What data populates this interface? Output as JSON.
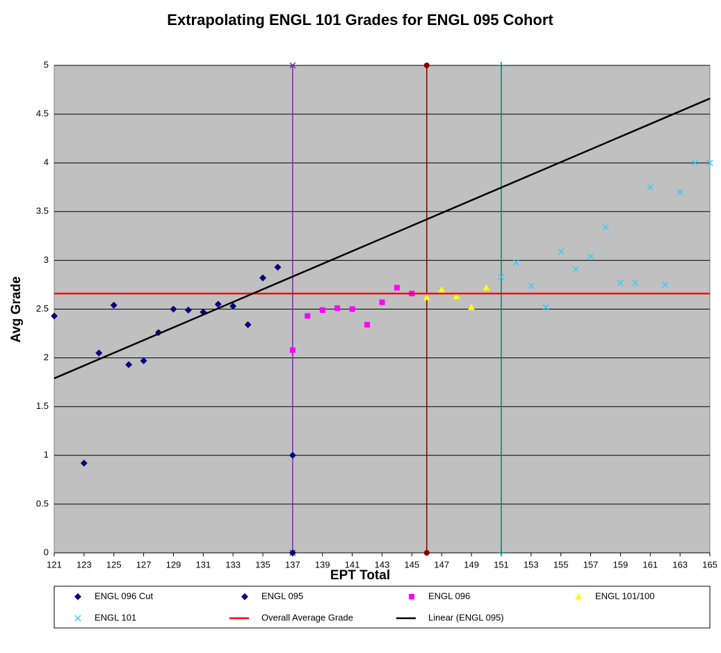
{
  "chart_data": {
    "type": "scatter",
    "title": "Extrapolating ENGL 101 Grades for ENGL 095 Cohort",
    "x_label": "EPT Total",
    "y_label": "Avg Grade",
    "xlim": [
      121,
      165
    ],
    "ylim": [
      0,
      5
    ],
    "xticks": [
      121,
      123,
      125,
      127,
      129,
      131,
      133,
      135,
      137,
      139,
      141,
      143,
      145,
      147,
      149,
      151,
      153,
      155,
      157,
      159,
      161,
      163,
      165
    ],
    "yticks": [
      0,
      0.5,
      1,
      1.5,
      2,
      2.5,
      3,
      3.5,
      4,
      4.5,
      5
    ],
    "grid": true,
    "background": "#c0c0c0",
    "series": [
      {
        "name": "ENGL 096 Cut",
        "color": "#000080",
        "marker": "diamond",
        "x": [
          137,
          137
        ],
        "values": [
          1,
          0
        ]
      },
      {
        "name": "ENGL 095",
        "color": "#000080",
        "marker": "diamond",
        "x": [
          121,
          123,
          124,
          125,
          126,
          127,
          128,
          129,
          130,
          131,
          132,
          133,
          134,
          135,
          136
        ],
        "values": [
          2.43,
          0.92,
          2.05,
          2.54,
          1.93,
          1.97,
          2.26,
          2.5,
          2.49,
          2.47,
          2.55,
          2.53,
          2.34,
          2.82,
          2.93
        ]
      },
      {
        "name": "ENGL 096",
        "color": "#ff00ff",
        "marker": "square",
        "x": [
          137,
          138,
          139,
          140,
          141,
          142,
          143,
          144,
          145
        ],
        "values": [
          2.08,
          2.43,
          2.49,
          2.51,
          2.5,
          2.34,
          2.57,
          2.72,
          2.66
        ]
      },
      {
        "name": "ENGL 101/100",
        "color": "#ffff00",
        "marker": "triangle",
        "x": [
          146,
          147,
          148,
          149,
          150
        ],
        "values": [
          2.62,
          2.7,
          2.63,
          2.52,
          2.72
        ]
      },
      {
        "name": "ENGL 101",
        "color": "#33ccff",
        "marker": "x",
        "x": [
          151,
          152,
          153,
          154,
          155,
          156,
          157,
          158,
          159,
          160,
          161,
          162,
          163,
          164,
          165
        ],
        "values": [
          2.83,
          2.98,
          2.74,
          2.52,
          3.09,
          2.91,
          3.04,
          3.34,
          2.77,
          2.77,
          3.75,
          2.75,
          3.7,
          4.0,
          4.0
        ]
      },
      {
        "name": "Overall Average Grade",
        "color": "#ff0000",
        "marker": "line",
        "x": [
          121,
          165
        ],
        "values": [
          2.66,
          2.66
        ]
      },
      {
        "name": "Linear (ENGL 095)",
        "color": "#000000",
        "marker": "line",
        "x": [
          121,
          165
        ],
        "values": [
          1.79,
          4.66
        ]
      }
    ],
    "vlines": [
      {
        "x": 137,
        "color": "#7030a0",
        "marker": "x"
      },
      {
        "x": 146,
        "color": "#800000",
        "marker": "circle"
      },
      {
        "x": 151,
        "color": "#008080",
        "marker": "plus"
      }
    ]
  }
}
